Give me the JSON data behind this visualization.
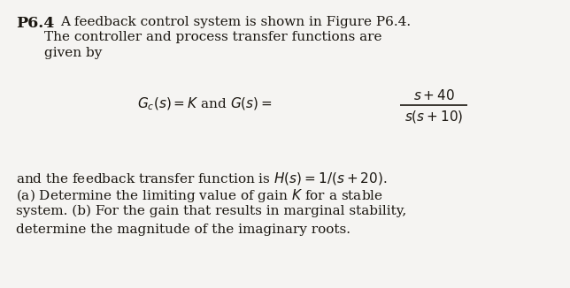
{
  "background_color": "#f5f4f2",
  "fig_width": 6.44,
  "fig_height": 3.26,
  "dpi": 100,
  "font_size_main": 11.0,
  "font_size_bold": 12.5,
  "text_color": "#1a1610",
  "p64_bold": "P6.4",
  "line1_rest": "A feedback control system is shown in Figure P6.4.",
  "line2": "The controller and process transfer functions are",
  "line3": "given by",
  "eq_left": "$G_c(s) = K$ and $G(s) = $",
  "eq_num": "$s + 40$",
  "eq_den": "$s(s + 10)$",
  "para2_l1": "and the feedback transfer function is $H(s) = 1/(s + 20)$.",
  "para2_l2": "(a) Determine the limiting value of gain $K$ for a stable",
  "para2_l3": "system. (b) For the gain that results in marginal stability,",
  "para2_l4": "determine the magnitude of the imaginary roots."
}
